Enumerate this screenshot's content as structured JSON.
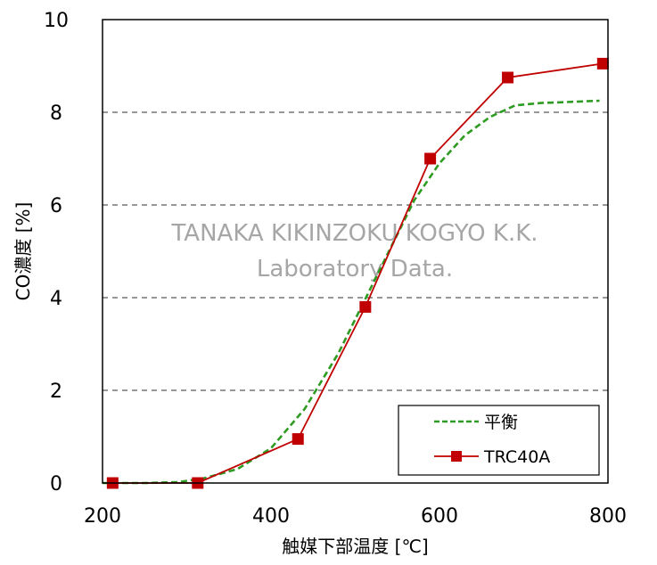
{
  "chart_data": {
    "type": "line",
    "xlabel": "触媒下部温度 [℃]",
    "ylabel": "CO濃度 [%]",
    "xlim": [
      200,
      800
    ],
    "ylim": [
      0,
      10
    ],
    "x_ticks": [
      "200",
      "400",
      "600",
      "800"
    ],
    "y_ticks": [
      "0",
      "2",
      "4",
      "6",
      "8",
      "10"
    ],
    "grid": "horizontal dashed",
    "legend_position": "bottom-right",
    "watermark": [
      "TANAKA KIKINZOKU KOGYO K.K.",
      "Laboratory Data."
    ],
    "series": [
      {
        "name": "平衡",
        "style": "dashed",
        "color": "#2e9b22",
        "x": [
          200,
          250,
          290,
          320,
          360,
          400,
          440,
          480,
          510,
          540,
          570,
          600,
          630,
          660,
          690,
          720,
          750,
          790
        ],
        "y": [
          0,
          0,
          0.02,
          0.1,
          0.3,
          0.75,
          1.6,
          2.8,
          3.9,
          5.0,
          6.1,
          6.9,
          7.5,
          7.9,
          8.15,
          8.2,
          8.22,
          8.25
        ]
      },
      {
        "name": "TRC40A",
        "style": "solid",
        "marker": "square",
        "color": "#c00000",
        "x": [
          212,
          313,
          432,
          512,
          589,
          681,
          794
        ],
        "y": [
          0,
          0,
          0.95,
          3.8,
          7.0,
          8.75,
          9.05
        ]
      }
    ]
  }
}
